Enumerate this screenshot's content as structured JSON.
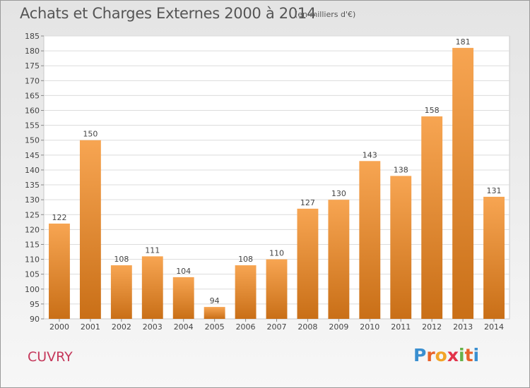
{
  "title": "Achats et Charges Externes 2000 à 2014",
  "subtitle": "(en milliers d'€)",
  "commune": "CUVRY",
  "logo": {
    "text": "Proxiti",
    "letters": [
      "P",
      "r",
      "o",
      "x",
      "i",
      "t",
      "i"
    ],
    "colors": [
      "#3a8fd0",
      "#e8622a",
      "#f2a428",
      "#e2334a",
      "#66b24a",
      "#e8622a",
      "#3a8fd0"
    ]
  },
  "colors": {
    "bar_top": "#f7a552",
    "bar_bottom": "#c96f17",
    "commune": "#c5385b"
  },
  "chart_data": {
    "type": "bar",
    "title": "Achats et Charges Externes 2000 à 2014",
    "subtitle": "(en milliers d'€)",
    "categories": [
      "2000",
      "2001",
      "2002",
      "2003",
      "2004",
      "2005",
      "2006",
      "2007",
      "2008",
      "2009",
      "2010",
      "2011",
      "2012",
      "2013",
      "2014"
    ],
    "values": [
      122,
      150,
      108,
      111,
      104,
      94,
      108,
      110,
      127,
      130,
      143,
      138,
      158,
      181,
      131
    ],
    "ylim": [
      90,
      185
    ],
    "yticks": [
      90,
      95,
      100,
      105,
      110,
      115,
      120,
      125,
      130,
      135,
      140,
      145,
      150,
      155,
      160,
      165,
      170,
      175,
      180,
      185
    ],
    "grid": true
  }
}
